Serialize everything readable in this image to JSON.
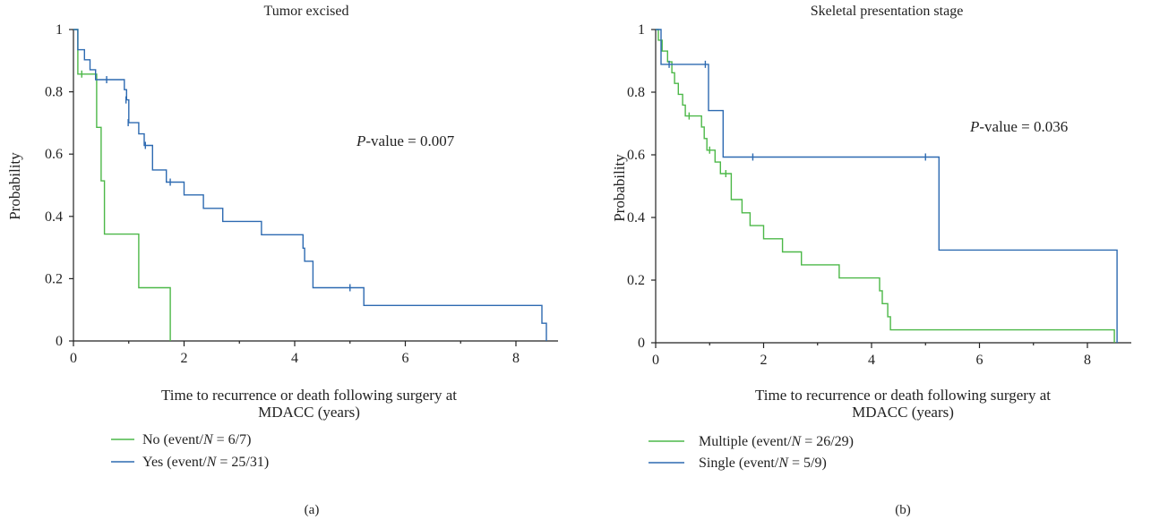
{
  "chart_data": [
    {
      "type": "line",
      "subtype": "kaplan-meier",
      "title": "Tumor excised",
      "panel_label": "(a)",
      "xlabel_line1": "Time to recurrence or death following surgery at",
      "xlabel_line2": "MDACC (years)",
      "ylabel": "Probability",
      "xlim": [
        0,
        8.7
      ],
      "ylim": [
        0,
        1
      ],
      "xticks": [
        0,
        2,
        4,
        6,
        8
      ],
      "yticks": [
        0,
        0.2,
        0.4,
        0.6,
        0.8,
        1
      ],
      "ytick_labels": [
        "0",
        "0.2",
        "0.4",
        "0.6",
        "0.8",
        "1"
      ],
      "annotation": {
        "italic": "P",
        "rest": "-value = 0.007"
      },
      "series": [
        {
          "name": "No",
          "legend_plain": "No (event/",
          "legend_italic": "N",
          "legend_rest": " = 6/7)",
          "color": "#4cb848",
          "steps": [
            [
              0,
              1
            ],
            [
              0.08,
              0.857
            ],
            [
              0.42,
              0.686
            ],
            [
              0.5,
              0.514
            ],
            [
              0.56,
              0.343
            ],
            [
              1.18,
              0.171
            ],
            [
              1.75,
              0
            ]
          ],
          "censored": [
            [
              0.15,
              0.857
            ]
          ]
        },
        {
          "name": "Yes",
          "legend_plain": "Yes (event/",
          "legend_italic": "N",
          "legend_rest": " = 25/31)",
          "color": "#2d6ab1",
          "steps": [
            [
              0,
              1
            ],
            [
              0.08,
              0.935
            ],
            [
              0.2,
              0.903
            ],
            [
              0.3,
              0.871
            ],
            [
              0.4,
              0.839
            ],
            [
              0.92,
              0.807
            ],
            [
              0.96,
              0.774
            ],
            [
              1.0,
              0.701
            ],
            [
              1.18,
              0.665
            ],
            [
              1.28,
              0.628
            ],
            [
              1.43,
              0.549
            ],
            [
              1.68,
              0.51
            ],
            [
              2.0,
              0.469
            ],
            [
              2.35,
              0.426
            ],
            [
              2.7,
              0.384
            ],
            [
              3.4,
              0.341
            ],
            [
              4.15,
              0.298
            ],
            [
              4.18,
              0.256
            ],
            [
              4.33,
              0.171
            ],
            [
              5.25,
              0.114
            ],
            [
              8.47,
              0.057
            ],
            [
              8.55,
              0
            ]
          ],
          "censored": [
            [
              0.6,
              0.839
            ],
            [
              0.95,
              0.774
            ],
            [
              0.99,
              0.701
            ],
            [
              1.3,
              0.628
            ],
            [
              1.75,
              0.51
            ],
            [
              5.0,
              0.171
            ]
          ]
        }
      ]
    },
    {
      "type": "line",
      "subtype": "kaplan-meier",
      "title": "Skeletal presentation stage",
      "panel_label": "(b)",
      "xlabel_line1": "Time to recurrence or death following surgery at",
      "xlabel_line2": "MDACC (years)",
      "ylabel": "Probability",
      "xlim": [
        0,
        8.7
      ],
      "ylim": [
        0,
        1
      ],
      "xticks": [
        0,
        2,
        4,
        6,
        8
      ],
      "yticks": [
        0,
        0.2,
        0.4,
        0.6,
        0.8,
        1
      ],
      "ytick_labels": [
        "0",
        "0.2",
        "0.4",
        "0.6",
        "0.8",
        "1"
      ],
      "annotation": {
        "italic": "P",
        "rest": "-value = 0.036"
      },
      "series": [
        {
          "name": "Multiple",
          "legend_plain": "Multiple (event/",
          "legend_italic": "N",
          "legend_rest": " = 26/29)",
          "color": "#4cb848",
          "steps": [
            [
              0,
              1
            ],
            [
              0.05,
              0.966
            ],
            [
              0.12,
              0.931
            ],
            [
              0.22,
              0.897
            ],
            [
              0.3,
              0.862
            ],
            [
              0.35,
              0.828
            ],
            [
              0.42,
              0.793
            ],
            [
              0.5,
              0.759
            ],
            [
              0.55,
              0.724
            ],
            [
              0.85,
              0.689
            ],
            [
              0.9,
              0.652
            ],
            [
              0.95,
              0.615
            ],
            [
              1.1,
              0.577
            ],
            [
              1.2,
              0.54
            ],
            [
              1.4,
              0.457
            ],
            [
              1.6,
              0.415
            ],
            [
              1.75,
              0.374
            ],
            [
              2.0,
              0.332
            ],
            [
              2.35,
              0.29
            ],
            [
              2.7,
              0.249
            ],
            [
              3.4,
              0.207
            ],
            [
              4.15,
              0.166
            ],
            [
              4.2,
              0.125
            ],
            [
              4.3,
              0.083
            ],
            [
              4.35,
              0.041
            ],
            [
              8.5,
              0
            ]
          ],
          "censored": [
            [
              0.62,
              0.724
            ],
            [
              1.0,
              0.615
            ],
            [
              1.3,
              0.54
            ]
          ]
        },
        {
          "name": "Single",
          "legend_plain": "Single (event/",
          "legend_italic": "N",
          "legend_rest": " = 5/9)",
          "color": "#2d6ab1",
          "steps": [
            [
              0,
              1
            ],
            [
              0.1,
              0.889
            ],
            [
              0.98,
              0.741
            ],
            [
              1.25,
              0.593
            ],
            [
              5.25,
              0.296
            ],
            [
              8.55,
              0
            ]
          ],
          "censored": [
            [
              0.25,
              0.889
            ],
            [
              0.92,
              0.889
            ],
            [
              1.8,
              0.593
            ],
            [
              5.0,
              0.593
            ]
          ]
        }
      ]
    }
  ]
}
